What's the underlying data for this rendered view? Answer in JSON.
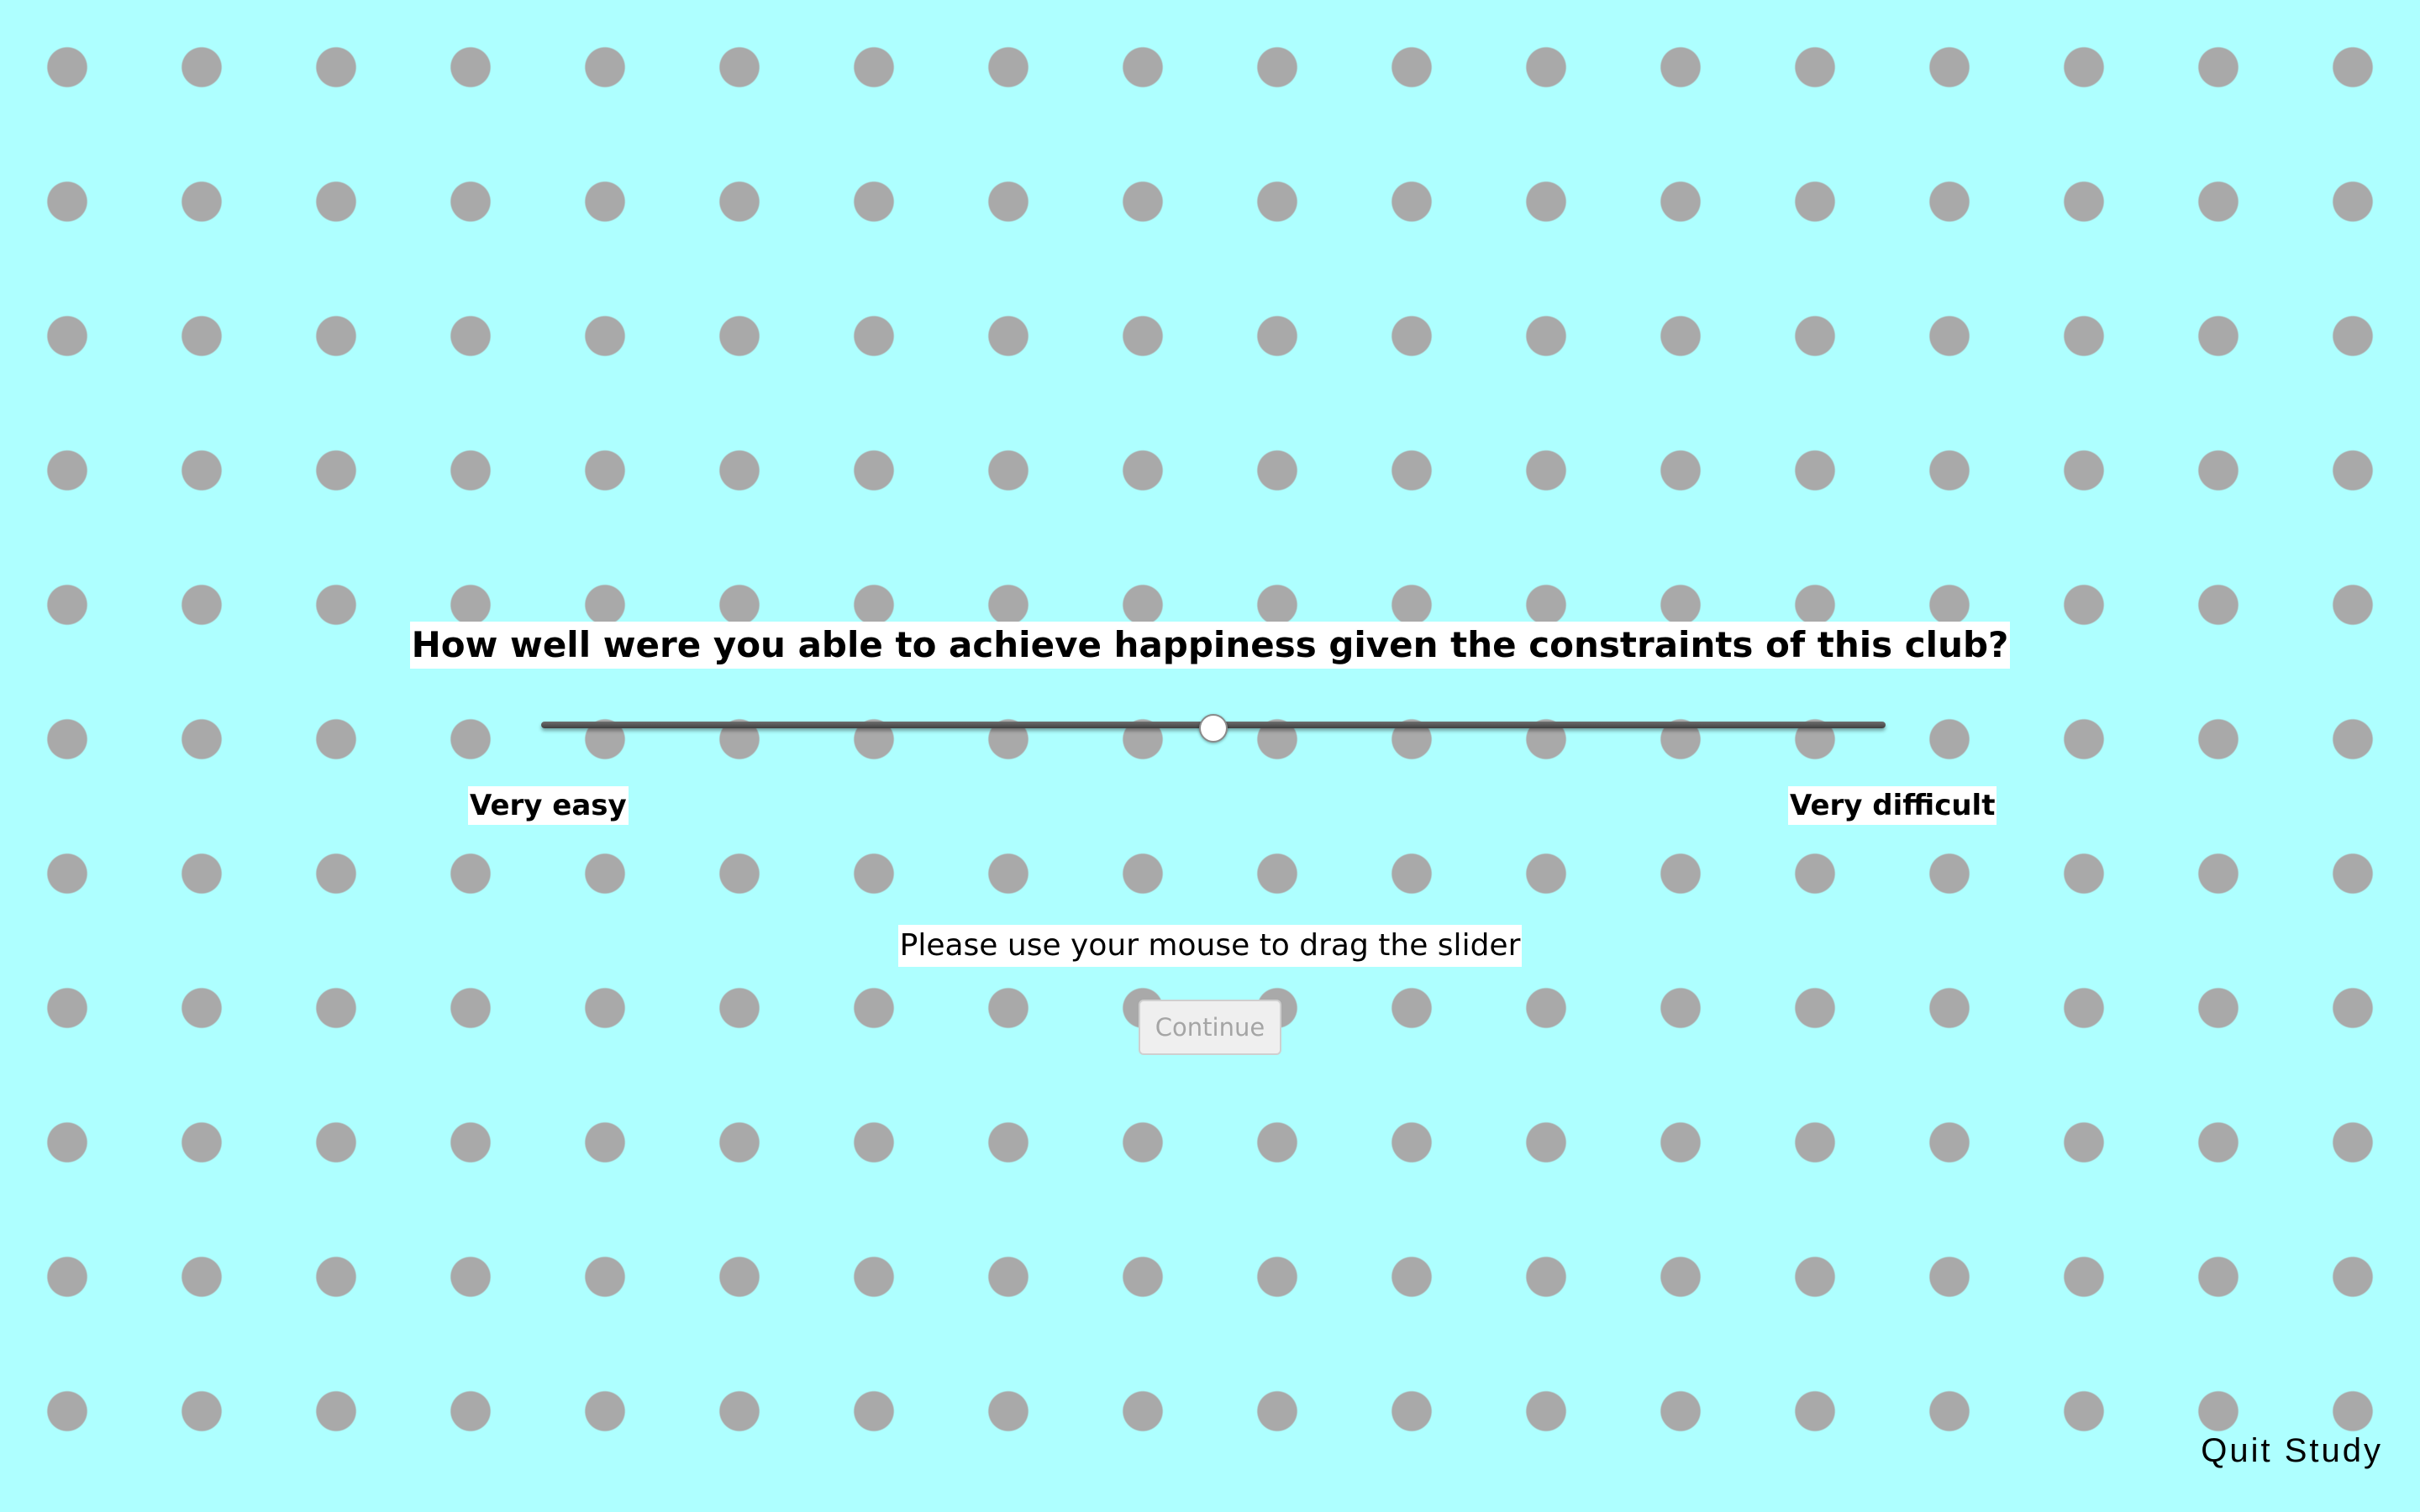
{
  "question": {
    "text": "How well were you able to achieve happiness given the constraints of this club?"
  },
  "slider": {
    "value": 0.5,
    "min_label": "Very easy",
    "max_label": "Very difficult"
  },
  "instruction": "Please use your mouse to drag the slider",
  "continue_button": {
    "label": "Continue",
    "disabled": true
  },
  "quit_link": "Quit Study",
  "colors": {
    "background": "#aeffff",
    "dot": "#a9a9a9"
  }
}
